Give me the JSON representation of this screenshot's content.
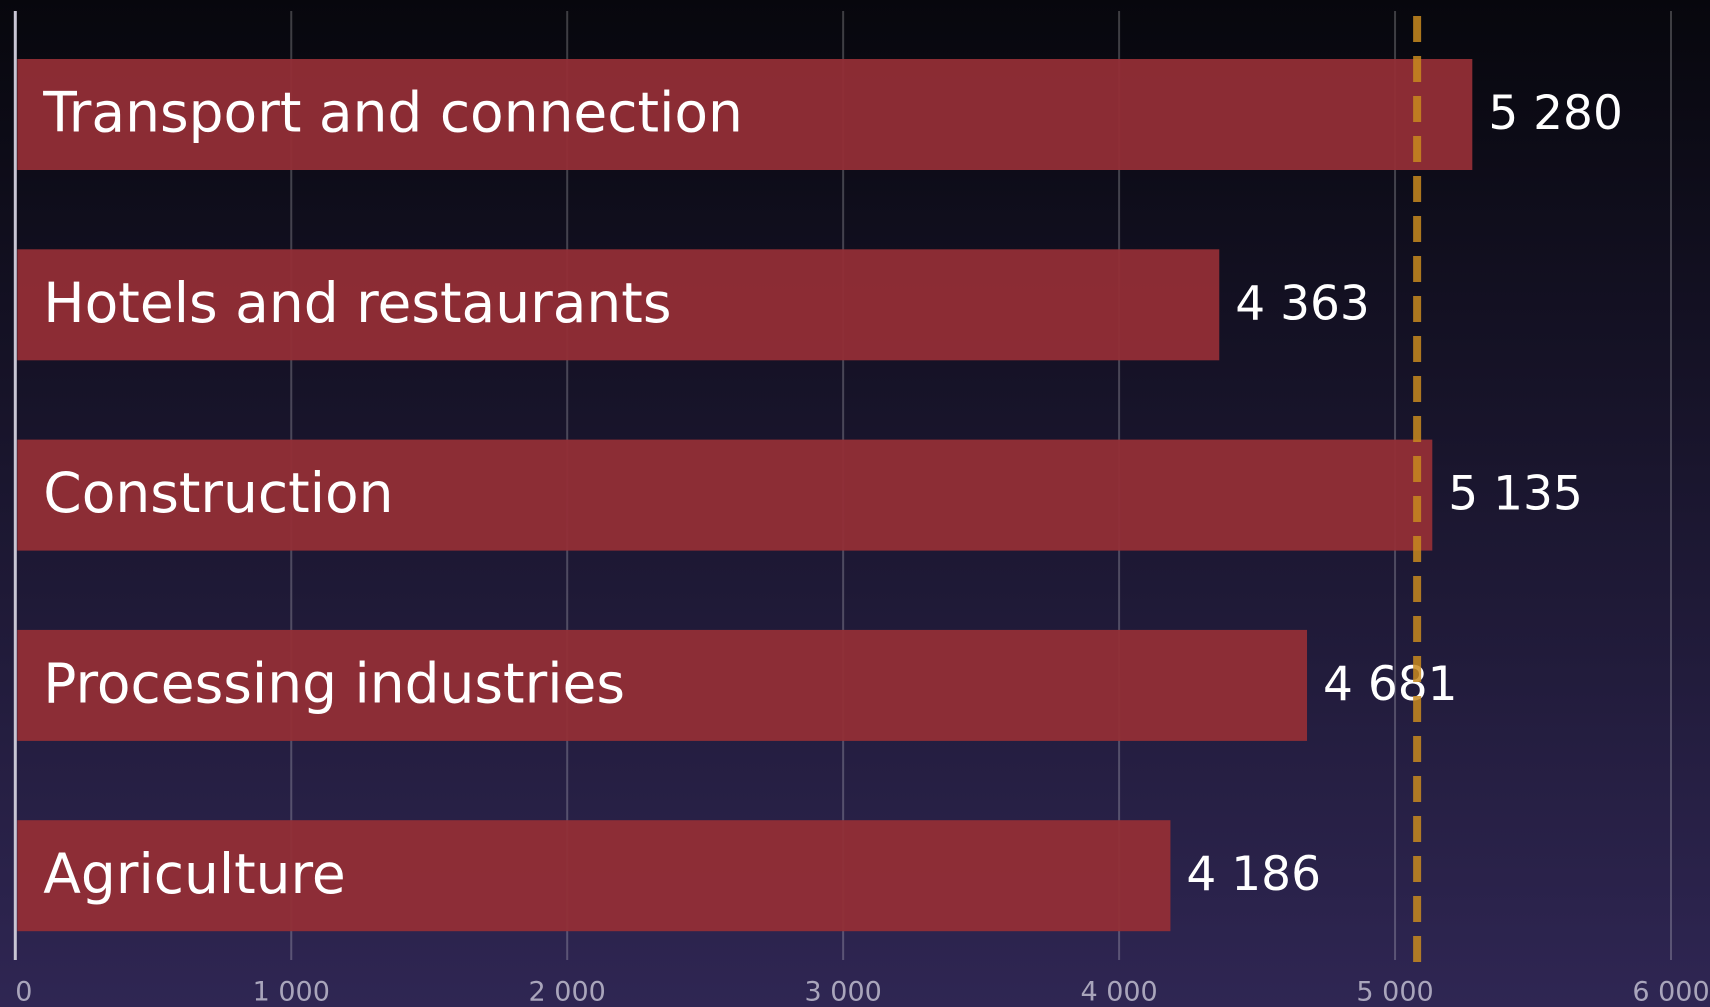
{
  "chart_data": {
    "type": "bar",
    "orientation": "horizontal",
    "categories": [
      "Transport and connection",
      "Hotels and restaurants",
      "Construction",
      "Processing industries",
      "Agriculture"
    ],
    "values": [
      5280,
      4363,
      5135,
      4681,
      4186
    ],
    "value_labels": [
      "5 280",
      "4 363",
      "5 135",
      "4 681",
      "4 186"
    ],
    "color": "#922e36",
    "reference_line": {
      "value": 5080,
      "color": "#c88a1e"
    },
    "xlim": [
      0,
      6000
    ],
    "xticks": [
      0,
      {
        "value": 1000,
        "label": "1 000"
      },
      {
        "value": 2000,
        "label": "2 000"
      },
      {
        "value": 3000,
        "label": "3 000"
      },
      {
        "value": 4000,
        "label": "4 000"
      },
      {
        "value": 5000,
        "label": "5 000"
      },
      {
        "value": 6000,
        "label": "6 000"
      }
    ],
    "grid": true
  }
}
